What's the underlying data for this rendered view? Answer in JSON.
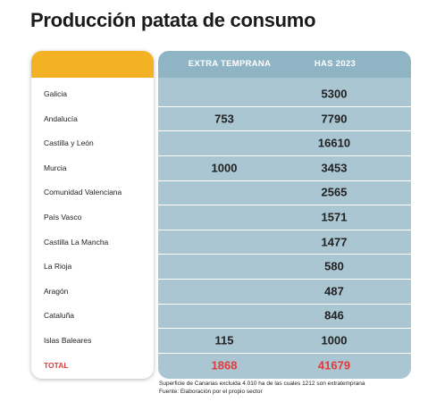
{
  "title": "Producción patata de consumo",
  "columns": {
    "extra": "EXTRA TEMPRANA",
    "has": "HAS 2023"
  },
  "rows": [
    {
      "label": "Galicia",
      "extra": "",
      "has": "5300"
    },
    {
      "label": "Andalucía",
      "extra": "753",
      "has": "7790"
    },
    {
      "label": "Castilla y León",
      "extra": "",
      "has": "16610"
    },
    {
      "label": "Murcia",
      "extra": "1000",
      "has": "3453"
    },
    {
      "label": "Comunidad Valenciana",
      "extra": "",
      "has": "2565"
    },
    {
      "label": "País Vasco",
      "extra": "",
      "has": "1571"
    },
    {
      "label": "Castilla La Mancha",
      "extra": "",
      "has": "1477"
    },
    {
      "label": "La Rioja",
      "extra": "",
      "has": "580"
    },
    {
      "label": "Aragón",
      "extra": "",
      "has": "487"
    },
    {
      "label": "Cataluña",
      "extra": "",
      "has": "846"
    },
    {
      "label": "Islas Baleares",
      "extra": "115",
      "has": "1000"
    }
  ],
  "total": {
    "label": "TOTAL",
    "extra": "1868",
    "has": "41679"
  },
  "footnotes": [
    "Superficie de Canarias excluida 4.010 ha de las cuales 1212 son extratemprana",
    "Fuente: Elaboración por el propio sector"
  ],
  "colors": {
    "accent": "#f3b224",
    "table_bg": "#a9c6d2",
    "header_bg": "#8fb4c4",
    "total": "#e23a3a"
  }
}
